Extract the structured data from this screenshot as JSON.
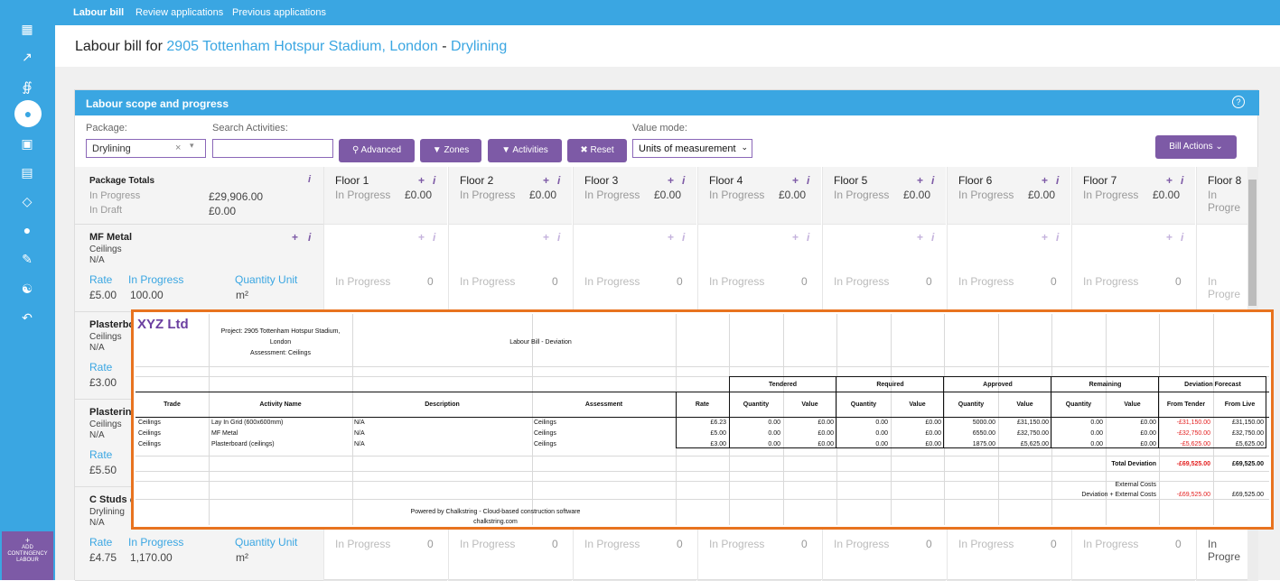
{
  "nav": {
    "tabs": [
      "Labour bill",
      "Review applications",
      "Previous applications"
    ]
  },
  "title": {
    "prefix": "Labour bill for ",
    "project": "2905 Tottenham Hotspur Stadium, London",
    "sep": " - ",
    "package": "Drylining"
  },
  "sidebar": {
    "icons": [
      "building-icon",
      "chart-icon",
      "network-icon",
      "user-icon",
      "monitor-icon",
      "document-icon",
      "tag-icon",
      "dot-icon",
      "ruler-icon",
      "team-icon",
      "back-icon"
    ],
    "add_contingency": "ADD CONTINGENCY LABOUR"
  },
  "panel": {
    "title": "Labour scope and progress",
    "help": "?",
    "package_label": "Package:",
    "package_value": "Drylining",
    "package_clear": "×",
    "search_label": "Search Activities:",
    "search_value": "",
    "buttons": {
      "advanced": "Advanced",
      "zones": "Zones",
      "activities": "Activities",
      "reset": "Reset"
    },
    "value_mode_label": "Value mode:",
    "value_mode_value": "Units of measurement",
    "bill_actions": "Bill Actions"
  },
  "grid": {
    "package_totals": {
      "title": "Package Totals",
      "in_progress_label": "In Progress",
      "in_progress_value": "£29,906.00",
      "in_draft_label": "In Draft",
      "in_draft_value": "£0.00"
    },
    "floors": [
      {
        "name": "Floor 1",
        "status": "In Progress",
        "value": "£0.00"
      },
      {
        "name": "Floor 2",
        "status": "In Progress",
        "value": "£0.00"
      },
      {
        "name": "Floor 3",
        "status": "In Progress",
        "value": "£0.00"
      },
      {
        "name": "Floor 4",
        "status": "In Progress",
        "value": "£0.00"
      },
      {
        "name": "Floor 5",
        "status": "In Progress",
        "value": "£0.00"
      },
      {
        "name": "Floor 6",
        "status": "In Progress",
        "value": "£0.00"
      },
      {
        "name": "Floor 7",
        "status": "In Progress",
        "value": "£0.00"
      },
      {
        "name": "Floor 8",
        "status": "In Progre",
        "value": ""
      }
    ],
    "cell_status": "In Progress",
    "cell_status_cut": "In Progre",
    "cell_zero": "0",
    "activities": [
      {
        "name": "MF Metal",
        "trade": "Ceilings",
        "scope": "N/A",
        "rate_label": "Rate",
        "progress_label": "In Progress",
        "unit_label": "Quantity Unit",
        "rate": "£5.00",
        "progress": "100.00",
        "unit": "m²"
      },
      {
        "name": "Plasterbo",
        "trade": "Ceilings",
        "scope": "N/A",
        "rate_label": "Rate",
        "rate": "£3.00"
      },
      {
        "name": "Plastering",
        "trade": "Ceilings",
        "scope": "N/A",
        "rate_label": "Rate",
        "rate": "£5.50"
      },
      {
        "name": "C Studs @",
        "trade": "Drylining",
        "scope": "N/A",
        "rate_label": "Rate",
        "progress_label": "In Progress",
        "unit_label": "Quantity Unit",
        "rate": "£4.75",
        "progress": "1,170.00",
        "unit": "m²"
      }
    ]
  },
  "report": {
    "logo": "XYZ Ltd",
    "project_line1": "Project: 2905 Tottenham Hotspur Stadium,",
    "project_line2": "London",
    "assessment_line": "Assessment: Ceilings",
    "report_title": "Labour Bill - Deviation",
    "groups": [
      "Tendered",
      "Required",
      "Approved",
      "Remaining",
      "Deviation Forecast"
    ],
    "headers": [
      "Trade",
      "Activity Name",
      "Description",
      "Assessment",
      "Rate",
      "Quantity",
      "Value",
      "Quantity",
      "Value",
      "Quantity",
      "Value",
      "Quantity",
      "Value",
      "From Tender",
      "From Live"
    ],
    "rows": [
      [
        "Ceilings",
        "Lay In Grid (600x600mm)",
        "N/A",
        "Ceilings",
        "£6.23",
        "0.00",
        "£0.00",
        "0.00",
        "£0.00",
        "5000.00",
        "£31,150.00",
        "0.00",
        "£0.00",
        "-£31,150.00",
        "£31,150.00"
      ],
      [
        "Ceilings",
        "MF Metal",
        "N/A",
        "Ceilings",
        "£5.00",
        "0.00",
        "£0.00",
        "0.00",
        "£0.00",
        "6550.00",
        "£32,750.00",
        "0.00",
        "£0.00",
        "-£32,750.00",
        "£32,750.00"
      ],
      [
        "Ceilings",
        "Plasterboard (ceilings)",
        "N/A",
        "Ceilings",
        "£3.00",
        "0.00",
        "£0.00",
        "0.00",
        "£0.00",
        "1875.00",
        "£5,625.00",
        "0.00",
        "£0.00",
        "-£5,625.00",
        "£5,625.00"
      ]
    ],
    "total_deviation_label": "Total Deviation",
    "total_deviation_tender": "-£69,525.00",
    "total_deviation_live": "£69,525.00",
    "external_costs_label": "External Costs",
    "dev_ext_label": "Deviation + External Costs",
    "dev_ext_tender": "-£69,525.00",
    "dev_ext_live": "£69,525.00",
    "powered_line1": "Powered by Chalkstring - Cloud-based construction software",
    "powered_line2": "chalkstring.com"
  }
}
